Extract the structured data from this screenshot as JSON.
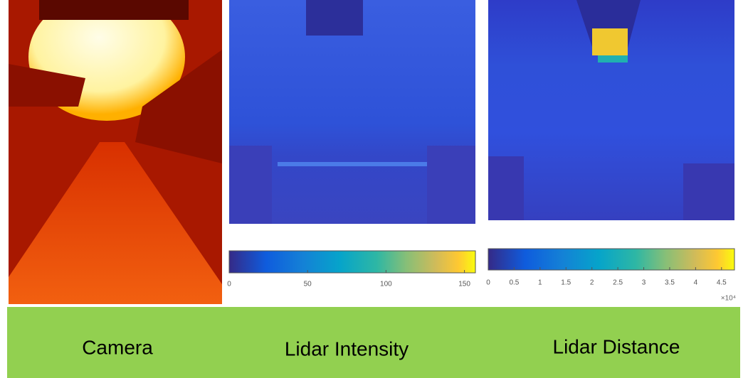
{
  "panels": [
    {
      "label": "Camera"
    },
    {
      "label": "Lidar Intensity",
      "colorbar": {
        "lim": [
          0,
          157
        ],
        "ticks": [
          0,
          50,
          100,
          150
        ]
      }
    },
    {
      "label": "Lidar Distance",
      "colorbar": {
        "lim": [
          0,
          4.75
        ],
        "ticks": [
          0,
          0.5,
          1,
          1.5,
          2,
          2.5,
          3,
          3.5,
          4,
          4.5
        ],
        "multiplier": "×10⁴"
      }
    }
  ]
}
